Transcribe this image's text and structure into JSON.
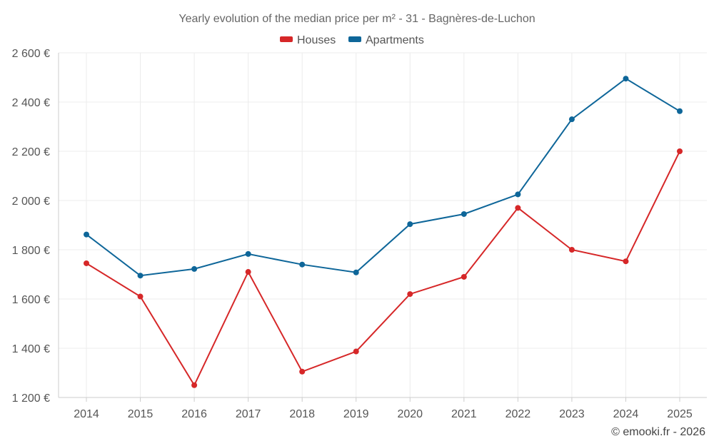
{
  "chart_data": {
    "type": "line",
    "title": "Yearly evolution of the median price per m² - 31 - Bagnères-de-Luchon",
    "xlabel": "",
    "ylabel": "",
    "categories": [
      "2014",
      "2015",
      "2016",
      "2017",
      "2018",
      "2019",
      "2020",
      "2021",
      "2022",
      "2023",
      "2024",
      "2025"
    ],
    "ylim": [
      1200,
      2600
    ],
    "yticks": [
      1200,
      1400,
      1600,
      1800,
      2000,
      2200,
      2400,
      2600
    ],
    "ytick_labels": [
      "1 200 €",
      "1 400 €",
      "1 600 €",
      "1 800 €",
      "2 000 €",
      "2 200 €",
      "2 400 €",
      "2 600 €"
    ],
    "grid": true,
    "legend_position": "top-center",
    "series": [
      {
        "name": "Houses",
        "color": "#d62728",
        "values": [
          1745,
          1610,
          1250,
          1710,
          1305,
          1387,
          1620,
          1690,
          1970,
          1800,
          1753,
          2200
        ]
      },
      {
        "name": "Apartments",
        "color": "#0e6699",
        "values": [
          1862,
          1695,
          1722,
          1783,
          1740,
          1708,
          1904,
          1945,
          2025,
          2330,
          2495,
          2363
        ]
      }
    ]
  },
  "credit": "© emooki.fr - 2026"
}
